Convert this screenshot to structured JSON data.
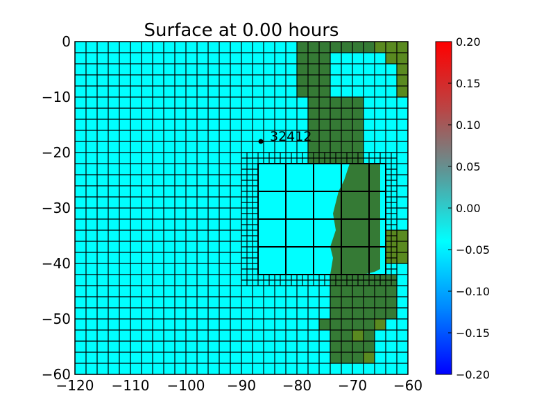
{
  "chart_data": {
    "type": "heatmap",
    "title": "Surface at 0.00 hours",
    "xlim": [
      -120,
      -60
    ],
    "ylim": [
      -60,
      0
    ],
    "x_ticks": [
      -120,
      -110,
      -100,
      -90,
      -80,
      -70,
      -60
    ],
    "x_tick_labels": [
      "−120",
      "−110",
      "−100",
      "−90",
      "−80",
      "−70",
      "−60"
    ],
    "y_ticks": [
      0,
      -10,
      -20,
      -30,
      -40,
      -50,
      -60
    ],
    "y_tick_labels": [
      "0",
      "−10",
      "−20",
      "−30",
      "−40",
      "−50",
      "−60"
    ],
    "colorbar": {
      "min": -0.2,
      "max": 0.2,
      "ticks": [
        0.2,
        0.15,
        0.1,
        0.05,
        0.0,
        -0.05,
        -0.1,
        -0.15,
        -0.2
      ],
      "tick_labels": [
        "0.20",
        "0.15",
        "0.10",
        "0.05",
        "0.00",
        "−0.05",
        "−0.10",
        "−0.15",
        "−0.20"
      ],
      "colors": [
        "#0000ff",
        "#0088ff",
        "#00ffff",
        "#5a9a9a",
        "#bb4444",
        "#ff0000"
      ]
    },
    "surface_value": 0.0,
    "water_color": "#00ffff",
    "land_color": "#357a35",
    "land_highlight_color": "#5a8a20",
    "coarse_grid_spacing": 2,
    "fine_patch": {
      "x": [
        -90,
        -62
      ],
      "y": [
        -44,
        -20
      ],
      "spacing": 1,
      "inner_region": {
        "x": [
          -87,
          -64
        ],
        "y": [
          -42,
          -22
        ],
        "spacing": 5
      }
    },
    "land_coarse": [
      [
        -80,
        -2,
        0,
        16
      ],
      [
        -80,
        -10,
        -2,
        6
      ],
      [
        -78,
        -22,
        -10,
        10
      ],
      [
        -68,
        -42,
        -22,
        4
      ],
      [
        -74,
        -50,
        -42,
        12
      ],
      [
        -76,
        -52,
        -50,
        10
      ],
      [
        -74,
        -58,
        -52,
        8
      ]
    ],
    "land_highlight_coarse": [
      [
        -66,
        -2,
        0,
        2
      ],
      [
        -64,
        -4,
        0,
        2
      ],
      [
        -62,
        -10,
        0,
        2
      ],
      [
        -64,
        -40,
        -34,
        2
      ],
      [
        -62,
        -40,
        -34,
        2
      ],
      [
        -66,
        -52,
        -50,
        2
      ],
      [
        -70,
        -54,
        -52,
        2
      ],
      [
        -68,
        -58,
        -56,
        2
      ]
    ],
    "land_inner_polygon": [
      [
        -70.5,
        -22
      ],
      [
        -65,
        -22
      ],
      [
        -65,
        -41
      ],
      [
        -66,
        -41.5
      ],
      [
        -68,
        -42
      ],
      [
        -74,
        -42
      ],
      [
        -73.5,
        -39
      ],
      [
        -74,
        -37
      ],
      [
        -73,
        -34
      ],
      [
        -73.5,
        -31
      ],
      [
        -72.5,
        -27
      ],
      [
        -71.5,
        -25
      ],
      [
        -70.5,
        -22
      ]
    ],
    "station": {
      "label": "32412",
      "x": -86.5,
      "y": -18.0
    }
  }
}
